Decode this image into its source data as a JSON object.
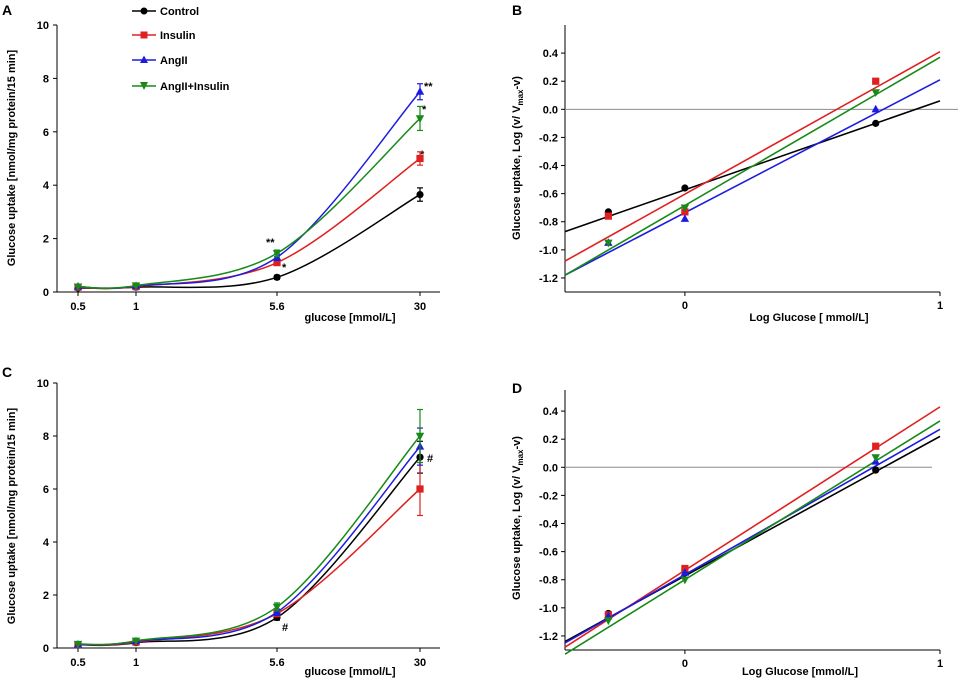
{
  "colors": {
    "Control": "#000000",
    "Insulin": "#e02020",
    "AngII": "#1c1ce0",
    "AngII+Insulin": "#178a17",
    "zero_line": "#8c8c8c"
  },
  "chart_data": [
    {
      "panel": "A",
      "type": "line",
      "xlabel": "glucose [mmol/L]",
      "ylabel": "Glucose uptake [nmol/mg protein/15 min]",
      "x_ticks": [
        "0.5",
        "1",
        "5.6",
        "30"
      ],
      "ylim": [
        0,
        10
      ],
      "y_ticks": [
        0,
        2,
        4,
        6,
        8,
        10
      ],
      "legend": [
        "Control",
        "Insulin",
        "AngII",
        "AngII+Insulin"
      ],
      "legend_position": "top-left",
      "series": [
        {
          "name": "Control",
          "x": [
            0.5,
            1,
            5.6,
            30
          ],
          "y": [
            0.15,
            0.18,
            0.55,
            3.65
          ],
          "err": [
            0.03,
            0.03,
            0.08,
            0.25
          ]
        },
        {
          "name": "Insulin",
          "x": [
            0.5,
            1,
            5.6,
            30
          ],
          "y": [
            0.18,
            0.2,
            1.1,
            5.0
          ],
          "err": [
            0.03,
            0.03,
            0.1,
            0.25
          ]
        },
        {
          "name": "AngII",
          "x": [
            0.5,
            1,
            5.6,
            30
          ],
          "y": [
            0.2,
            0.22,
            1.3,
            7.5
          ],
          "err": [
            0.03,
            0.03,
            0.12,
            0.3
          ]
        },
        {
          "name": "AngII+Insulin",
          "x": [
            0.5,
            1,
            5.6,
            30
          ],
          "y": [
            0.2,
            0.24,
            1.45,
            6.5
          ],
          "err": [
            0.03,
            0.03,
            0.12,
            0.45
          ]
        }
      ],
      "annotations": [
        "**",
        "*",
        "**",
        "*",
        "*"
      ]
    },
    {
      "panel": "B",
      "type": "line",
      "xlabel": "Log  Glucose [ mmol/L]",
      "ylabel_parts": [
        "Glucose uptake, Log (v/ V",
        "max",
        "-v)"
      ],
      "x_ticks": [
        "0",
        "1"
      ],
      "xlim": [
        -0.47,
        1.0
      ],
      "ylim": [
        -1.3,
        0.6
      ],
      "y_ticks": [
        "-1.2",
        "-1.0",
        "-0.8",
        "-0.6",
        "-0.4",
        "-0.2",
        "0.0",
        "0.2",
        "0.4"
      ],
      "series": [
        {
          "name": "Control",
          "x": [
            -0.3,
            0,
            0.748
          ],
          "y": [
            -0.73,
            -0.56,
            -0.1
          ],
          "fit": [
            -0.87,
            0.06
          ]
        },
        {
          "name": "Insulin",
          "x": [
            -0.3,
            0,
            0.748
          ],
          "y": [
            -0.76,
            -0.73,
            0.2
          ],
          "fit": [
            -1.08,
            0.41
          ]
        },
        {
          "name": "AngII",
          "x": [
            -0.3,
            0,
            0.748
          ],
          "y": [
            -0.95,
            -0.78,
            0.0
          ],
          "fit": [
            -1.18,
            0.21
          ]
        },
        {
          "name": "AngII+Insulin",
          "x": [
            -0.3,
            0,
            0.748
          ],
          "y": [
            -0.95,
            -0.7,
            0.12
          ],
          "fit": [
            -1.18,
            0.37
          ]
        }
      ]
    },
    {
      "panel": "C",
      "type": "line",
      "xlabel": "glucose [mmol/L]",
      "ylabel": "Glucose uptake [nmol/mg protein/15 min]",
      "x_ticks": [
        "0.5",
        "1",
        "5.6",
        "30"
      ],
      "ylim": [
        0,
        10
      ],
      "y_ticks": [
        0,
        2,
        4,
        6,
        8,
        10
      ],
      "series": [
        {
          "name": "Control",
          "x": [
            0.5,
            1,
            5.6,
            30
          ],
          "y": [
            0.12,
            0.2,
            1.15,
            7.2
          ],
          "err": [
            0.03,
            0.04,
            0.1,
            0.6
          ]
        },
        {
          "name": "Insulin",
          "x": [
            0.5,
            1,
            5.6,
            30
          ],
          "y": [
            0.13,
            0.22,
            1.3,
            6.0
          ],
          "err": [
            0.03,
            0.04,
            0.12,
            1.0
          ]
        },
        {
          "name": "AngII",
          "x": [
            0.5,
            1,
            5.6,
            30
          ],
          "y": [
            0.13,
            0.25,
            1.35,
            7.6
          ],
          "err": [
            0.03,
            0.04,
            0.12,
            0.7
          ]
        },
        {
          "name": "AngII+Insulin",
          "x": [
            0.5,
            1,
            5.6,
            30
          ],
          "y": [
            0.15,
            0.27,
            1.55,
            8.0
          ],
          "err": [
            0.03,
            0.04,
            0.15,
            1.0
          ]
        }
      ],
      "annotations": [
        "#",
        "#"
      ]
    },
    {
      "panel": "D",
      "type": "line",
      "xlabel": "Log Glucose [mmol/L]",
      "ylabel_parts": [
        "Glucose uptake, Log (v/ V",
        "max",
        "-v)"
      ],
      "x_ticks": [
        "0",
        "1"
      ],
      "xlim": [
        -0.47,
        1.0
      ],
      "ylim": [
        -1.3,
        0.55
      ],
      "y_ticks": [
        "-1.2",
        "-1.0",
        "-0.8",
        "-0.6",
        "-0.4",
        "-0.2",
        "0.0",
        "0.2",
        "0.4"
      ],
      "series": [
        {
          "name": "Control",
          "x": [
            -0.3,
            0,
            0.748
          ],
          "y": [
            -1.04,
            -0.73,
            -0.02
          ],
          "fit": [
            -1.24,
            0.22
          ]
        },
        {
          "name": "Insulin",
          "x": [
            -0.3,
            0,
            0.748
          ],
          "y": [
            -1.05,
            -0.72,
            0.15
          ],
          "fit": [
            -1.28,
            0.43
          ]
        },
        {
          "name": "AngII",
          "x": [
            -0.3,
            0,
            0.748
          ],
          "y": [
            -1.06,
            -0.75,
            0.04
          ],
          "fit": [
            -1.25,
            0.27
          ]
        },
        {
          "name": "AngII+Insulin",
          "x": [
            -0.3,
            0,
            0.748
          ],
          "y": [
            -1.09,
            -0.8,
            0.07
          ],
          "fit": [
            -1.33,
            0.33
          ]
        }
      ]
    }
  ]
}
